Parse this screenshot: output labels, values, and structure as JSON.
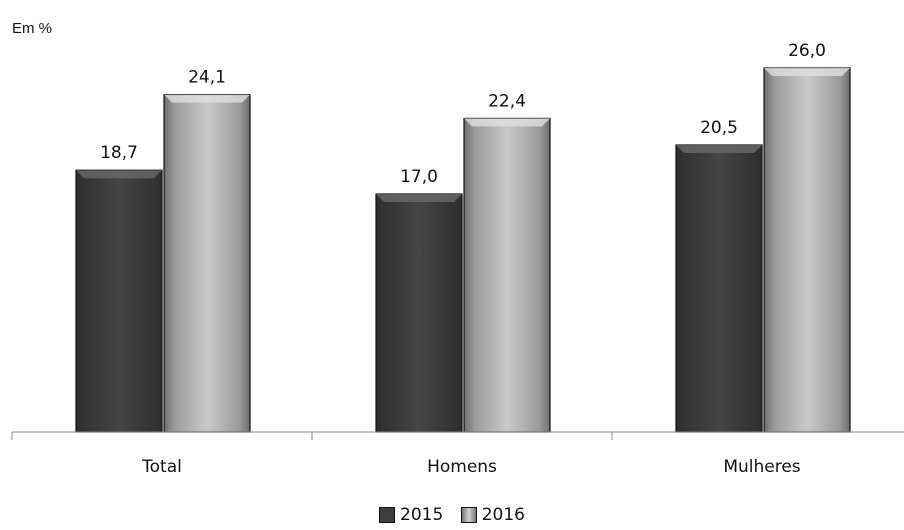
{
  "chart_data": {
    "type": "bar",
    "unit_label": "Em %",
    "categories": [
      "Total",
      "Homens",
      "Mulheres"
    ],
    "series": [
      {
        "name": "2015",
        "values": [
          18.7,
          17.0,
          20.5
        ],
        "value_labels": [
          "18,7",
          "17,0",
          "20,5"
        ],
        "color": "#3d3d3d"
      },
      {
        "name": "2016",
        "values": [
          24.1,
          22.4,
          26.0
        ],
        "value_labels": [
          "24,1",
          "22,4",
          "26,0"
        ],
        "color": "#a8a8a8"
      }
    ],
    "ylim": [
      0,
      28
    ],
    "grid": false,
    "legend_position": "bottom-center"
  }
}
